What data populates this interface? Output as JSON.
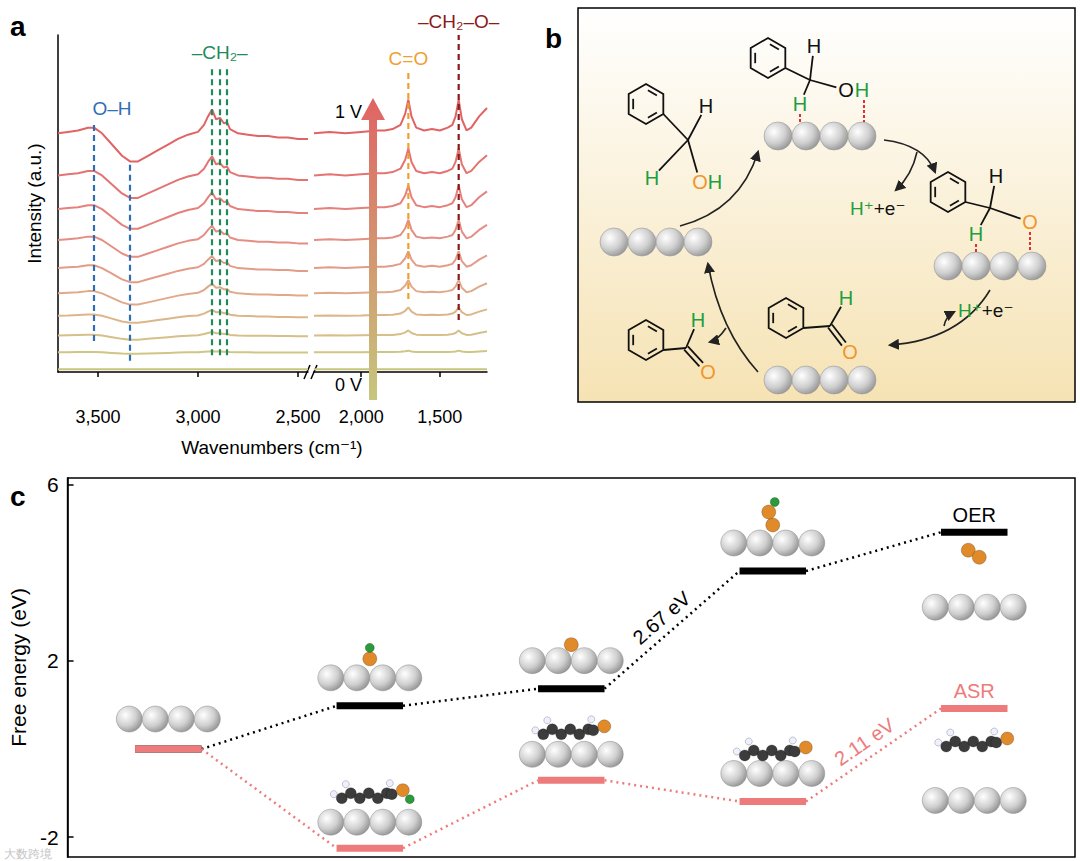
{
  "chart_data": [
    {
      "type": "line",
      "title": "a",
      "xlabel": "Wavenumbers (cm⁻¹)",
      "ylabel": "Intensity (a.u.)",
      "x": [
        3700,
        3650,
        3600,
        3550,
        3520,
        3480,
        3430,
        3380,
        3340,
        3300,
        3250,
        3200,
        3150,
        3100,
        3050,
        3000,
        2970,
        2950,
        2930,
        2910,
        2890,
        2870,
        2855,
        2840,
        2800,
        2750,
        2700,
        2650,
        2600,
        2550,
        2500,
        2450,
        2300,
        2200,
        2100,
        2000,
        1900,
        1850,
        1800,
        1750,
        1720,
        1700,
        1680,
        1650,
        1600,
        1550,
        1500,
        1450,
        1420,
        1400,
        1380,
        1360,
        1330,
        1300,
        1250,
        1200
      ],
      "xlim": [
        3700,
        1200
      ],
      "x_break": [
        2450,
        2300
      ],
      "xticks": [
        3500,
        3000,
        2500,
        2000,
        1500
      ],
      "ylim": [
        0,
        12
      ],
      "tick_labels": "x",
      "series": [
        {
          "color": "#c6c67c",
          "values": [
            0.1,
            0.1,
            0.1,
            0.1,
            0.1,
            0.1,
            0.1,
            0.1,
            0.1,
            0.1,
            0.1,
            0.1,
            0.1,
            0.1,
            0.1,
            0.1,
            0.1,
            0.1,
            0.1,
            0.1,
            0.1,
            0.1,
            0.1,
            0.1,
            0.1,
            0.1,
            0.1,
            0.1,
            0.1,
            0.1,
            0.1,
            0.1,
            0.1,
            0.1,
            0.1,
            0.1,
            0.1,
            0.1,
            0.1,
            0.1,
            0.1,
            0.1,
            0.1,
            0.1,
            0.1,
            0.1,
            0.1,
            0.1,
            0.1,
            0.1,
            0.1,
            0.1,
            0.1,
            0.1,
            0.1,
            0.1
          ]
        },
        {
          "color": "#cfc585",
          "values": [
            0.7,
            0.7,
            0.71,
            0.71,
            0.71,
            0.7,
            0.68,
            0.66,
            0.65,
            0.65,
            0.66,
            0.67,
            0.68,
            0.69,
            0.7,
            0.7,
            0.72,
            0.73,
            0.74,
            0.73,
            0.73,
            0.72,
            0.72,
            0.71,
            0.7,
            0.7,
            0.69,
            0.69,
            0.69,
            0.69,
            0.69,
            0.69,
            0.7,
            0.7,
            0.7,
            0.7,
            0.71,
            0.71,
            0.71,
            0.72,
            0.74,
            0.76,
            0.73,
            0.71,
            0.71,
            0.71,
            0.71,
            0.71,
            0.72,
            0.73,
            0.76,
            0.73,
            0.71,
            0.71,
            0.73,
            0.75
          ]
        },
        {
          "color": "#d6bf88",
          "values": [
            1.3,
            1.31,
            1.32,
            1.33,
            1.33,
            1.3,
            1.24,
            1.18,
            1.15,
            1.15,
            1.18,
            1.21,
            1.24,
            1.27,
            1.29,
            1.31,
            1.35,
            1.39,
            1.43,
            1.38,
            1.38,
            1.35,
            1.36,
            1.32,
            1.3,
            1.29,
            1.29,
            1.29,
            1.28,
            1.28,
            1.27,
            1.27,
            1.3,
            1.31,
            1.3,
            1.31,
            1.32,
            1.32,
            1.32,
            1.35,
            1.41,
            1.48,
            1.39,
            1.33,
            1.32,
            1.32,
            1.32,
            1.33,
            1.35,
            1.39,
            1.48,
            1.38,
            1.32,
            1.33,
            1.39,
            1.44
          ]
        },
        {
          "color": "#dcb68a",
          "values": [
            2,
            2.01,
            2.03,
            2.05,
            2.05,
            2,
            1.9,
            1.8,
            1.75,
            1.75,
            1.8,
            1.85,
            1.9,
            1.95,
            1.99,
            2.01,
            2.08,
            2.15,
            2.21,
            2.13,
            2.14,
            2.09,
            2.1,
            2.04,
            2,
            1.99,
            1.98,
            1.98,
            1.96,
            1.96,
            1.95,
            1.95,
            2,
            2.01,
            2,
            2.01,
            2.03,
            2.03,
            2.04,
            2.08,
            2.18,
            2.3,
            2.15,
            2.05,
            2.03,
            2.04,
            2.03,
            2.05,
            2.08,
            2.15,
            2.3,
            2.13,
            2.03,
            2.05,
            2.15,
            2.23
          ]
        },
        {
          "color": "#e0aa8a",
          "values": [
            2.8,
            2.82,
            2.84,
            2.88,
            2.88,
            2.8,
            2.64,
            2.48,
            2.4,
            2.4,
            2.48,
            2.56,
            2.64,
            2.72,
            2.78,
            2.82,
            2.92,
            3.04,
            3.14,
            3.0,
            3.02,
            2.94,
            2.96,
            2.86,
            2.8,
            2.78,
            2.76,
            2.76,
            2.74,
            2.74,
            2.72,
            2.72,
            2.8,
            2.82,
            2.8,
            2.82,
            2.84,
            2.84,
            2.86,
            2.92,
            3.08,
            3.28,
            3.04,
            2.88,
            2.84,
            2.86,
            2.84,
            2.88,
            2.92,
            3.04,
            3.28,
            3.0,
            2.84,
            2.88,
            3.04,
            3.16
          ]
        },
        {
          "color": "#e39c88",
          "values": [
            3.7,
            3.73,
            3.75,
            3.8,
            3.8,
            3.7,
            3.5,
            3.3,
            3.2,
            3.2,
            3.3,
            3.4,
            3.5,
            3.6,
            3.68,
            3.73,
            3.85,
            4.0,
            4.13,
            3.95,
            3.98,
            3.88,
            3.9,
            3.78,
            3.7,
            3.68,
            3.65,
            3.65,
            3.63,
            3.63,
            3.6,
            3.6,
            3.7,
            3.73,
            3.7,
            3.73,
            3.75,
            3.75,
            3.78,
            3.85,
            4.05,
            4.3,
            4.0,
            3.8,
            3.75,
            3.78,
            3.75,
            3.8,
            3.85,
            4.0,
            4.3,
            3.95,
            3.75,
            3.8,
            4.0,
            4.15
          ]
        },
        {
          "color": "#e48e84",
          "values": [
            4.7,
            4.73,
            4.76,
            4.82,
            4.82,
            4.7,
            4.46,
            4.22,
            4.1,
            4.1,
            4.22,
            4.34,
            4.46,
            4.58,
            4.67,
            4.73,
            4.88,
            5.06,
            5.21,
            5.0,
            5.03,
            4.91,
            4.94,
            4.79,
            4.7,
            4.67,
            4.64,
            4.64,
            4.61,
            4.61,
            4.58,
            4.58,
            4.7,
            4.73,
            4.7,
            4.73,
            4.76,
            4.76,
            4.79,
            4.88,
            5.12,
            5.42,
            5.06,
            4.82,
            4.76,
            4.79,
            4.76,
            4.82,
            4.88,
            5.06,
            5.42,
            5.0,
            4.76,
            4.82,
            5.06,
            5.24
          ]
        },
        {
          "color": "#e5817c",
          "values": [
            5.8,
            5.84,
            5.87,
            5.94,
            5.94,
            5.8,
            5.52,
            5.24,
            5.1,
            5.1,
            5.24,
            5.38,
            5.52,
            5.66,
            5.77,
            5.84,
            6.01,
            6.22,
            6.4,
            6.15,
            6.19,
            6.05,
            6.08,
            5.91,
            5.8,
            5.77,
            5.73,
            5.73,
            5.7,
            5.7,
            5.66,
            5.66,
            5.8,
            5.84,
            5.8,
            5.84,
            5.87,
            5.87,
            5.91,
            6.01,
            6.29,
            6.64,
            6.22,
            5.94,
            5.87,
            5.91,
            5.87,
            5.94,
            6.01,
            6.22,
            6.64,
            6.15,
            5.87,
            5.94,
            6.22,
            6.43
          ]
        },
        {
          "color": "#e47472",
          "values": [
            7,
            7.04,
            7.08,
            7.16,
            7.16,
            7,
            6.68,
            6.36,
            6.2,
            6.2,
            6.36,
            6.52,
            6.68,
            6.84,
            6.96,
            7.04,
            7.24,
            7.48,
            7.68,
            7.4,
            7.44,
            7.28,
            7.32,
            7.12,
            7,
            6.96,
            6.92,
            6.92,
            6.88,
            6.88,
            6.84,
            6.84,
            7,
            7.04,
            7,
            7.04,
            7.08,
            7.08,
            7.12,
            7.24,
            7.56,
            7.96,
            7.48,
            7.16,
            7.08,
            7.12,
            7.08,
            7.16,
            7.24,
            7.48,
            7.96,
            7.4,
            7.08,
            7.16,
            7.48,
            7.72
          ]
        },
        {
          "color": "#e06464",
          "values": [
            8.5,
            8.55,
            8.6,
            8.7,
            8.7,
            8.5,
            8.1,
            7.7,
            7.5,
            7.5,
            7.7,
            7.9,
            8.1,
            8.3,
            8.45,
            8.55,
            8.8,
            9.1,
            9.35,
            9.0,
            9.05,
            8.85,
            8.9,
            8.65,
            8.5,
            8.45,
            8.4,
            8.4,
            8.35,
            8.35,
            8.3,
            8.3,
            8.5,
            8.55,
            8.5,
            8.55,
            8.6,
            8.6,
            8.65,
            8.8,
            9.2,
            9.7,
            9.1,
            8.7,
            8.6,
            8.65,
            8.6,
            8.7,
            8.8,
            9.1,
            9.7,
            9.0,
            8.6,
            8.7,
            9.1,
            9.4
          ]
        }
      ],
      "annotations": [
        {
          "text": "O–H",
          "color": "#2f6db5",
          "lines": [
            {
              "x": 3520,
              "y": [
                1.1,
                8.9
              ]
            },
            {
              "x": 3340,
              "y": [
                0.4,
                7.5
              ]
            }
          ]
        },
        {
          "text": "–CH₂–",
          "color": "#1f8a5a",
          "lines": [
            {
              "x": 2930,
              "y": [
                0.6,
                10.9
              ]
            },
            {
              "x": 2890,
              "y": [
                0.6,
                10.9
              ]
            },
            {
              "x": 2855,
              "y": [
                0.6,
                10.9
              ]
            }
          ]
        },
        {
          "text": "C=O",
          "color": "#f0a030",
          "lines": [
            {
              "x": 1700,
              "y": [
                2.6,
                10.7
              ]
            }
          ]
        },
        {
          "text": "–CH₂–O–",
          "color": "#8b1a1a",
          "lines": [
            {
              "x": 1380,
              "y": [
                1.85,
                12
              ]
            }
          ]
        }
      ],
      "arrow": {
        "from": "0 V",
        "to": "1 V"
      }
    },
    {
      "type": "step",
      "title": "c",
      "ylabel": "Free energy (eV)",
      "categories": [
        null,
        null,
        null,
        null,
        null
      ],
      "ylim": [
        -2.45,
        6.15
      ],
      "yticks": [
        -2,
        2,
        6
      ],
      "tick_labels": "y",
      "line_style": "dotted",
      "series": [
        {
          "name": "OER",
          "color": "#000000",
          "values": [
            0,
            0.98,
            1.37,
            4.04,
            4.92
          ]
        },
        {
          "name": "ASR",
          "color": "#ee7b7b",
          "values": [
            0,
            -2.25,
            -0.71,
            -1.19,
            0.92
          ]
        }
      ],
      "annotations": [
        {
          "text": "2.67 eV",
          "series": "OER",
          "from": 2,
          "to": 3
        },
        {
          "text": "2.11 eV",
          "series": "ASR",
          "from": 3,
          "to": 4
        }
      ]
    }
  ],
  "scheme": {
    "title": "b",
    "species": [
      {
        "labels": [
          {
            "text": "H",
            "color": "#111111"
          },
          {
            "text": "H",
            "color": "#1e9e3e"
          },
          {
            "text": "O",
            "color": "#f0962a"
          },
          {
            "text": "H",
            "color": "#1e9e3e"
          }
        ]
      },
      {
        "labels": [
          {
            "text": "H",
            "color": "#111111"
          },
          {
            "text": "H",
            "color": "#1e9e3e"
          },
          {
            "text": "O",
            "color": "#111111"
          },
          {
            "text": "H",
            "color": "#1e9e3e"
          }
        ]
      },
      {
        "labels": [
          {
            "text": "H",
            "color": "#111111"
          },
          {
            "text": "H",
            "color": "#1e9e3e"
          },
          {
            "text": "O",
            "color": "#f0962a"
          }
        ]
      },
      {
        "labels": [
          {
            "text": "H",
            "color": "#1e9e3e"
          },
          {
            "text": "O",
            "color": "#f0962a"
          }
        ]
      },
      {
        "labels": [
          {
            "text": "H",
            "color": "#1e9e3e"
          },
          {
            "text": "O",
            "color": "#f0962a"
          }
        ]
      }
    ],
    "byproducts": [
      [
        {
          "text": "H⁺",
          "color": "#1e9e3e"
        },
        {
          "text": "+e⁻",
          "color": "#111111"
        }
      ],
      [
        {
          "text": "H⁺",
          "color": "#1e9e3e"
        },
        {
          "text": "+e⁻",
          "color": "#111111"
        }
      ]
    ]
  },
  "watermark": "大数跨境"
}
